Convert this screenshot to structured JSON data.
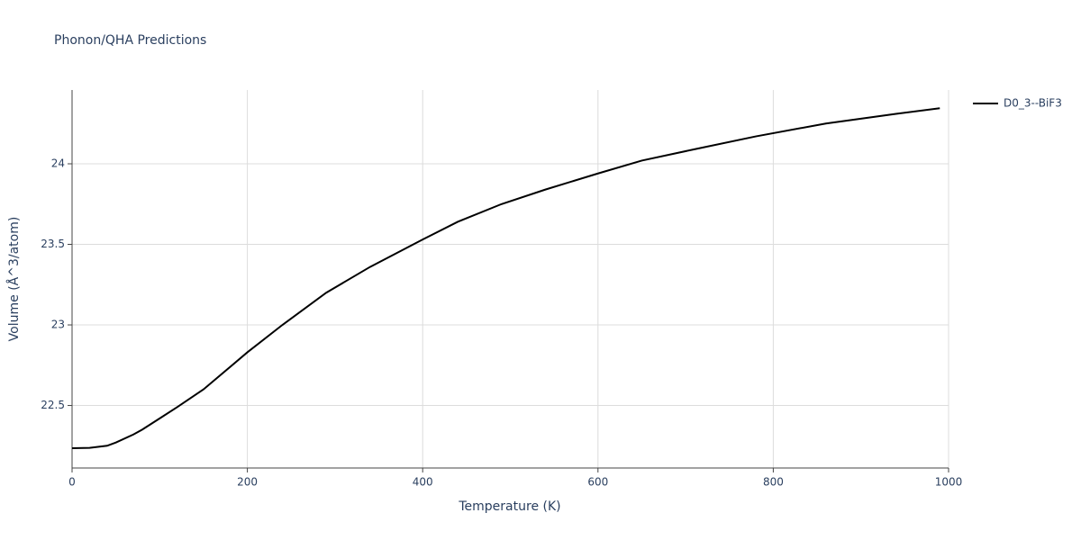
{
  "chart_data": {
    "type": "line",
    "title": "Phonon/QHA Predictions",
    "x_label": "Temperature (K)",
    "y_label": "Volume (Å^3/atom)",
    "x": [
      0,
      20,
      40,
      50,
      70,
      80,
      100,
      120,
      150,
      200,
      240,
      290,
      340,
      400,
      440,
      490,
      540,
      600,
      650,
      710,
      780,
      860,
      940,
      990
    ],
    "series": [
      {
        "name": "D0_3--BiF3",
        "color": "#000000",
        "values": [
          22.235,
          22.237,
          22.25,
          22.27,
          22.32,
          22.35,
          22.42,
          22.49,
          22.6,
          22.83,
          23.0,
          23.2,
          23.36,
          23.53,
          23.64,
          23.75,
          23.84,
          23.94,
          24.02,
          24.09,
          24.17,
          24.25,
          24.31,
          24.345
        ]
      }
    ],
    "xlim": [
      0,
      1000
    ],
    "xticks": [
      0,
      200,
      400,
      600,
      800,
      1000
    ],
    "ylim": [
      22.112,
      24.458
    ],
    "yticks": [
      22.5,
      23,
      23.5,
      24
    ],
    "grid": true,
    "legend": "right"
  }
}
